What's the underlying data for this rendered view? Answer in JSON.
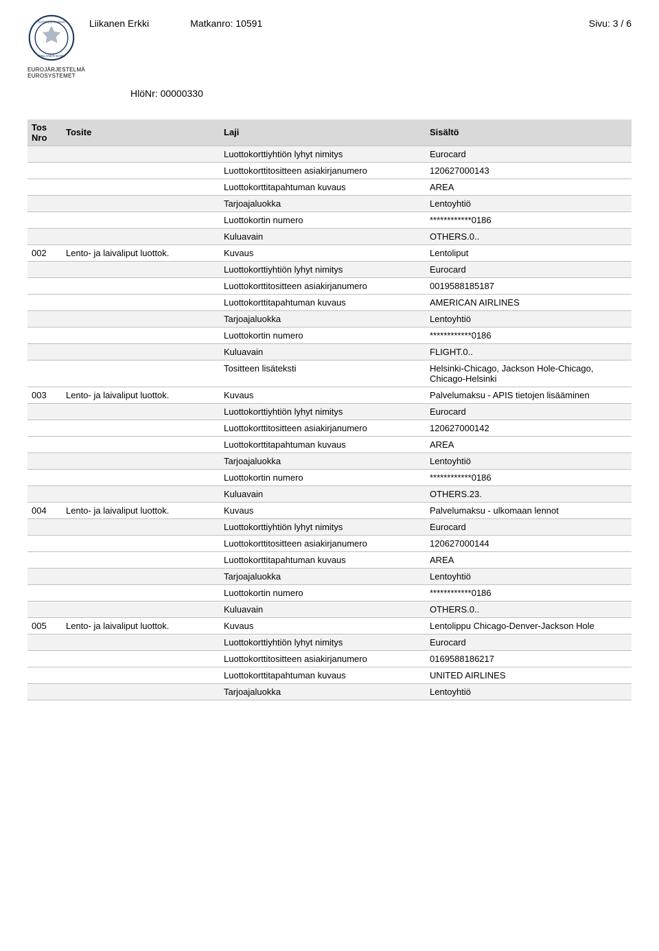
{
  "header": {
    "name": "Liikanen Erkki",
    "trip_label": "Matkanro:",
    "trip_no": "10591",
    "page_label": "Sivu:",
    "page_no": "3 / 6",
    "logo_caption1": "EUROJÄRJESTELMÄ",
    "logo_caption2": "EUROSYSTEMET",
    "person_label": "HlöNr:",
    "person_no": "00000330"
  },
  "columns": {
    "c1": "Tos Nro",
    "c2": "Tosite",
    "c3": "Laji",
    "c4": "Sisältö"
  },
  "rows": [
    {
      "shade": true,
      "c1": "",
      "c2": "",
      "c3": "Luottokorttiyhtiön lyhyt nimitys",
      "c4": "Eurocard"
    },
    {
      "shade": false,
      "c1": "",
      "c2": "",
      "c3": "Luottokorttitositteen asiakirjanumero",
      "c4": "120627000143"
    },
    {
      "shade": false,
      "c1": "",
      "c2": "",
      "c3": "Luottokorttitapahtuman kuvaus",
      "c4": "AREA"
    },
    {
      "shade": true,
      "c1": "",
      "c2": "",
      "c3": "Tarjoajaluokka",
      "c4": "Lentoyhtiö"
    },
    {
      "shade": false,
      "c1": "",
      "c2": "",
      "c3": "Luottokortin numero",
      "c4": "************0186"
    },
    {
      "shade": true,
      "c1": "",
      "c2": "",
      "c3": "Kuluavain",
      "c4": "OTHERS.0.."
    },
    {
      "shade": false,
      "c1": "002",
      "c2": "Lento- ja laivaliput luottok.",
      "c3": "Kuvaus",
      "c4": "Lentoliput"
    },
    {
      "shade": true,
      "c1": "",
      "c2": "",
      "c3": "Luottokorttiyhtiön lyhyt nimitys",
      "c4": "Eurocard"
    },
    {
      "shade": false,
      "c1": "",
      "c2": "",
      "c3": "Luottokorttitositteen asiakirjanumero",
      "c4": "0019588185187"
    },
    {
      "shade": false,
      "c1": "",
      "c2": "",
      "c3": "Luottokorttitapahtuman kuvaus",
      "c4": "AMERICAN AIRLINES"
    },
    {
      "shade": true,
      "c1": "",
      "c2": "",
      "c3": "Tarjoajaluokka",
      "c4": "Lentoyhtiö"
    },
    {
      "shade": false,
      "c1": "",
      "c2": "",
      "c3": "Luottokortin numero",
      "c4": "************0186"
    },
    {
      "shade": true,
      "c1": "",
      "c2": "",
      "c3": "Kuluavain",
      "c4": "FLIGHT.0.."
    },
    {
      "shade": false,
      "c1": "",
      "c2": "",
      "c3": "Tositteen lisäteksti",
      "c4": "Helsinki-Chicago, Jackson Hole-Chicago, Chicago-Helsinki"
    },
    {
      "shade": false,
      "c1": "003",
      "c2": "Lento- ja laivaliput luottok.",
      "c3": "Kuvaus",
      "c4": "Palvelumaksu - APIS tietojen lisääminen"
    },
    {
      "shade": true,
      "c1": "",
      "c2": "",
      "c3": "Luottokorttiyhtiön lyhyt nimitys",
      "c4": "Eurocard"
    },
    {
      "shade": false,
      "c1": "",
      "c2": "",
      "c3": "Luottokorttitositteen asiakirjanumero",
      "c4": "120627000142"
    },
    {
      "shade": false,
      "c1": "",
      "c2": "",
      "c3": "Luottokorttitapahtuman kuvaus",
      "c4": "AREA"
    },
    {
      "shade": true,
      "c1": "",
      "c2": "",
      "c3": "Tarjoajaluokka",
      "c4": "Lentoyhtiö"
    },
    {
      "shade": false,
      "c1": "",
      "c2": "",
      "c3": "Luottokortin numero",
      "c4": "************0186"
    },
    {
      "shade": true,
      "c1": "",
      "c2": "",
      "c3": "Kuluavain",
      "c4": "OTHERS.23."
    },
    {
      "shade": false,
      "c1": "004",
      "c2": "Lento- ja laivaliput luottok.",
      "c3": "Kuvaus",
      "c4": "Palvelumaksu - ulkomaan lennot"
    },
    {
      "shade": true,
      "c1": "",
      "c2": "",
      "c3": "Luottokorttiyhtiön lyhyt nimitys",
      "c4": "Eurocard"
    },
    {
      "shade": false,
      "c1": "",
      "c2": "",
      "c3": "Luottokorttitositteen asiakirjanumero",
      "c4": "120627000144"
    },
    {
      "shade": false,
      "c1": "",
      "c2": "",
      "c3": "Luottokorttitapahtuman kuvaus",
      "c4": "AREA"
    },
    {
      "shade": true,
      "c1": "",
      "c2": "",
      "c3": "Tarjoajaluokka",
      "c4": "Lentoyhtiö"
    },
    {
      "shade": false,
      "c1": "",
      "c2": "",
      "c3": "Luottokortin numero",
      "c4": "************0186"
    },
    {
      "shade": true,
      "c1": "",
      "c2": "",
      "c3": "Kuluavain",
      "c4": "OTHERS.0.."
    },
    {
      "shade": false,
      "c1": "005",
      "c2": "Lento- ja laivaliput luottok.",
      "c3": "Kuvaus",
      "c4": "Lentolippu Chicago-Denver-Jackson Hole"
    },
    {
      "shade": true,
      "c1": "",
      "c2": "",
      "c3": "Luottokorttiyhtiön lyhyt nimitys",
      "c4": "Eurocard"
    },
    {
      "shade": false,
      "c1": "",
      "c2": "",
      "c3": "Luottokorttitositteen asiakirjanumero",
      "c4": "0169588186217"
    },
    {
      "shade": false,
      "c1": "",
      "c2": "",
      "c3": "Luottokorttitapahtuman kuvaus",
      "c4": "UNITED AIRLINES"
    },
    {
      "shade": true,
      "c1": "",
      "c2": "",
      "c3": "Tarjoajaluokka",
      "c4": "Lentoyhtiö"
    }
  ]
}
